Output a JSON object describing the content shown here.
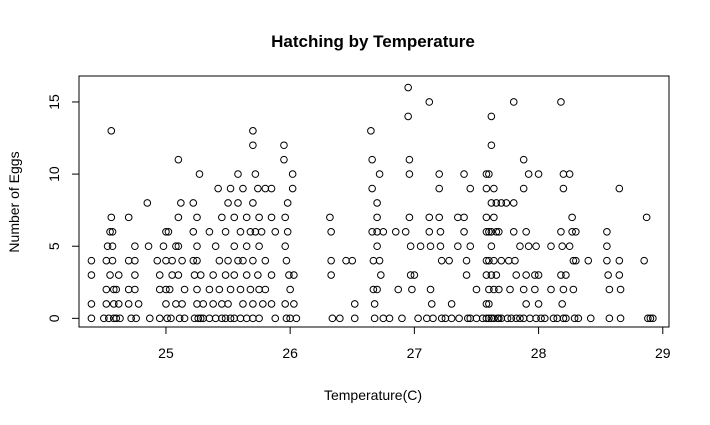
{
  "chart_data": {
    "type": "scatter",
    "title": "Hatching by Temperature",
    "xlabel": "Temperature(C)",
    "ylabel": "Number of Eggs",
    "xlim": [
      24.3,
      29.05
    ],
    "ylim": [
      -0.6,
      16.8
    ],
    "xticks": [
      25,
      26,
      27,
      28,
      29
    ],
    "yticks": [
      0,
      5,
      10,
      15
    ],
    "grid": false,
    "marker": "open-circle",
    "colors": {
      "points": "#000000",
      "frame": "#000000",
      "background": "#ffffff"
    },
    "points": [
      [
        24.4,
        4
      ],
      [
        24.4,
        3
      ],
      [
        24.4,
        1
      ],
      [
        24.4,
        0
      ],
      [
        24.5,
        0
      ],
      [
        24.52,
        1
      ],
      [
        24.52,
        2
      ],
      [
        24.52,
        4
      ],
      [
        24.53,
        5
      ],
      [
        24.54,
        0
      ],
      [
        24.55,
        3
      ],
      [
        24.55,
        6
      ],
      [
        24.56,
        13
      ],
      [
        24.56,
        7
      ],
      [
        24.57,
        6
      ],
      [
        24.57,
        5
      ],
      [
        24.57,
        4
      ],
      [
        24.58,
        2
      ],
      [
        24.58,
        1
      ],
      [
        24.58,
        0
      ],
      [
        24.6,
        2
      ],
      [
        24.6,
        0
      ],
      [
        24.62,
        3
      ],
      [
        24.62,
        1
      ],
      [
        24.63,
        0
      ],
      [
        24.7,
        7
      ],
      [
        24.7,
        4
      ],
      [
        24.7,
        2
      ],
      [
        24.7,
        1
      ],
      [
        24.72,
        0
      ],
      [
        24.75,
        5
      ],
      [
        24.75,
        4
      ],
      [
        24.75,
        3
      ],
      [
        24.75,
        2
      ],
      [
        24.76,
        0
      ],
      [
        24.78,
        1
      ],
      [
        24.85,
        8
      ],
      [
        24.86,
        5
      ],
      [
        24.87,
        0
      ],
      [
        24.93,
        4
      ],
      [
        24.95,
        3
      ],
      [
        24.95,
        2
      ],
      [
        24.95,
        0
      ],
      [
        24.98,
        5
      ],
      [
        25.0,
        6
      ],
      [
        25.0,
        4
      ],
      [
        25.0,
        2
      ],
      [
        25.0,
        1
      ],
      [
        25.01,
        0
      ],
      [
        25.02,
        6
      ],
      [
        25.03,
        2
      ],
      [
        25.04,
        0
      ],
      [
        25.05,
        4
      ],
      [
        25.05,
        3
      ],
      [
        25.08,
        5
      ],
      [
        25.08,
        1
      ],
      [
        25.1,
        11
      ],
      [
        25.1,
        7
      ],
      [
        25.1,
        5
      ],
      [
        25.1,
        3
      ],
      [
        25.11,
        0
      ],
      [
        25.12,
        8
      ],
      [
        25.13,
        4
      ],
      [
        25.13,
        1
      ],
      [
        25.15,
        0
      ],
      [
        25.15,
        2
      ],
      [
        25.22,
        8
      ],
      [
        25.22,
        6
      ],
      [
        25.22,
        4
      ],
      [
        25.23,
        3
      ],
      [
        25.23,
        0
      ],
      [
        25.25,
        7
      ],
      [
        25.25,
        5
      ],
      [
        25.25,
        4
      ],
      [
        25.25,
        2
      ],
      [
        25.25,
        1
      ],
      [
        25.26,
        0
      ],
      [
        25.27,
        10
      ],
      [
        25.28,
        3
      ],
      [
        25.28,
        0
      ],
      [
        25.3,
        1
      ],
      [
        25.3,
        0
      ],
      [
        25.35,
        6
      ],
      [
        25.35,
        2
      ],
      [
        25.35,
        0
      ],
      [
        25.38,
        3
      ],
      [
        25.38,
        1
      ],
      [
        25.4,
        5
      ],
      [
        25.4,
        0
      ],
      [
        25.42,
        9
      ],
      [
        25.43,
        4
      ],
      [
        25.43,
        2
      ],
      [
        25.45,
        7
      ],
      [
        25.45,
        1
      ],
      [
        25.45,
        0
      ],
      [
        25.48,
        6
      ],
      [
        25.48,
        3
      ],
      [
        25.48,
        0
      ],
      [
        25.5,
        8
      ],
      [
        25.5,
        4
      ],
      [
        25.5,
        1
      ],
      [
        25.52,
        9
      ],
      [
        25.52,
        2
      ],
      [
        25.52,
        0
      ],
      [
        25.55,
        7
      ],
      [
        25.55,
        5
      ],
      [
        25.55,
        3
      ],
      [
        25.55,
        0
      ],
      [
        25.58,
        10
      ],
      [
        25.58,
        8
      ],
      [
        25.58,
        4
      ],
      [
        25.6,
        6
      ],
      [
        25.6,
        2
      ],
      [
        25.6,
        0
      ],
      [
        25.62,
        9
      ],
      [
        25.62,
        4
      ],
      [
        25.62,
        1
      ],
      [
        25.65,
        7
      ],
      [
        25.65,
        5
      ],
      [
        25.65,
        3
      ],
      [
        25.65,
        0
      ],
      [
        25.68,
        6
      ],
      [
        25.68,
        2
      ],
      [
        25.7,
        13
      ],
      [
        25.7,
        12
      ],
      [
        25.7,
        8
      ],
      [
        25.7,
        4
      ],
      [
        25.7,
        1
      ],
      [
        25.7,
        0
      ],
      [
        25.72,
        10
      ],
      [
        25.72,
        6
      ],
      [
        25.74,
        9
      ],
      [
        25.74,
        3
      ],
      [
        25.75,
        7
      ],
      [
        25.75,
        5
      ],
      [
        25.75,
        2
      ],
      [
        25.75,
        0
      ],
      [
        25.77,
        6
      ],
      [
        25.78,
        1
      ],
      [
        25.8,
        9
      ],
      [
        25.8,
        4
      ],
      [
        25.8,
        2
      ],
      [
        25.85,
        9
      ],
      [
        25.85,
        7
      ],
      [
        25.85,
        3
      ],
      [
        25.85,
        1
      ],
      [
        25.88,
        6
      ],
      [
        25.88,
        0
      ],
      [
        25.95,
        12
      ],
      [
        25.95,
        11
      ],
      [
        25.96,
        7
      ],
      [
        25.96,
        5
      ],
      [
        25.96,
        1
      ],
      [
        25.97,
        4
      ],
      [
        25.97,
        0
      ],
      [
        25.98,
        8
      ],
      [
        25.98,
        6
      ],
      [
        25.99,
        3
      ],
      [
        26.0,
        2
      ],
      [
        26.0,
        0
      ],
      [
        26.02,
        10
      ],
      [
        26.02,
        9
      ],
      [
        26.03,
        3
      ],
      [
        26.03,
        1
      ],
      [
        26.05,
        0
      ],
      [
        26.32,
        7
      ],
      [
        26.33,
        6
      ],
      [
        26.33,
        4
      ],
      [
        26.33,
        3
      ],
      [
        26.34,
        0
      ],
      [
        26.4,
        0
      ],
      [
        26.45,
        4
      ],
      [
        26.5,
        4
      ],
      [
        26.52,
        1
      ],
      [
        26.52,
        0
      ],
      [
        26.65,
        13
      ],
      [
        26.66,
        11
      ],
      [
        26.66,
        9
      ],
      [
        26.66,
        6
      ],
      [
        26.67,
        4
      ],
      [
        26.67,
        2
      ],
      [
        26.68,
        1
      ],
      [
        26.68,
        0
      ],
      [
        26.7,
        8
      ],
      [
        26.7,
        7
      ],
      [
        26.7,
        6
      ],
      [
        26.7,
        5
      ],
      [
        26.7,
        2
      ],
      [
        26.72,
        10
      ],
      [
        26.72,
        4
      ],
      [
        26.73,
        3
      ],
      [
        26.75,
        6
      ],
      [
        26.75,
        0
      ],
      [
        26.8,
        0
      ],
      [
        26.85,
        6
      ],
      [
        26.87,
        2
      ],
      [
        26.9,
        0
      ],
      [
        26.93,
        6
      ],
      [
        26.95,
        16
      ],
      [
        26.95,
        14
      ],
      [
        26.96,
        11
      ],
      [
        26.96,
        10
      ],
      [
        26.96,
        7
      ],
      [
        26.97,
        5
      ],
      [
        26.97,
        3
      ],
      [
        26.98,
        2
      ],
      [
        27.0,
        3
      ],
      [
        27.03,
        0
      ],
      [
        27.05,
        5
      ],
      [
        27.1,
        0
      ],
      [
        27.12,
        15
      ],
      [
        27.12,
        7
      ],
      [
        27.12,
        6
      ],
      [
        27.13,
        5
      ],
      [
        27.13,
        2
      ],
      [
        27.14,
        1
      ],
      [
        27.15,
        0
      ],
      [
        27.2,
        10
      ],
      [
        27.2,
        9
      ],
      [
        27.2,
        7
      ],
      [
        27.21,
        6
      ],
      [
        27.21,
        5
      ],
      [
        27.22,
        4
      ],
      [
        27.22,
        0
      ],
      [
        27.25,
        0
      ],
      [
        27.28,
        4
      ],
      [
        27.3,
        1
      ],
      [
        27.3,
        0
      ],
      [
        27.35,
        7
      ],
      [
        27.35,
        5
      ],
      [
        27.36,
        0
      ],
      [
        27.4,
        10
      ],
      [
        27.4,
        7
      ],
      [
        27.4,
        6
      ],
      [
        27.42,
        4
      ],
      [
        27.42,
        3
      ],
      [
        27.43,
        0
      ],
      [
        27.45,
        9
      ],
      [
        27.45,
        5
      ],
      [
        27.45,
        0
      ],
      [
        27.5,
        2
      ],
      [
        27.5,
        0
      ],
      [
        27.55,
        0
      ],
      [
        27.58,
        10
      ],
      [
        27.58,
        9
      ],
      [
        27.58,
        7
      ],
      [
        27.58,
        6
      ],
      [
        27.58,
        4
      ],
      [
        27.58,
        3
      ],
      [
        27.58,
        1
      ],
      [
        27.58,
        0
      ],
      [
        27.6,
        10
      ],
      [
        27.6,
        6
      ],
      [
        27.6,
        4
      ],
      [
        27.6,
        2
      ],
      [
        27.6,
        1
      ],
      [
        27.6,
        0
      ],
      [
        27.62,
        14
      ],
      [
        27.62,
        12
      ],
      [
        27.62,
        8
      ],
      [
        27.62,
        6
      ],
      [
        27.62,
        5
      ],
      [
        27.62,
        3
      ],
      [
        27.62,
        0
      ],
      [
        27.64,
        9
      ],
      [
        27.64,
        7
      ],
      [
        27.64,
        4
      ],
      [
        27.64,
        2
      ],
      [
        27.64,
        0
      ],
      [
        27.66,
        8
      ],
      [
        27.66,
        6
      ],
      [
        27.66,
        3
      ],
      [
        27.67,
        0
      ],
      [
        27.68,
        6
      ],
      [
        27.68,
        2
      ],
      [
        27.68,
        0
      ],
      [
        27.7,
        8
      ],
      [
        27.7,
        4
      ],
      [
        27.7,
        0
      ],
      [
        27.74,
        8
      ],
      [
        27.75,
        0
      ],
      [
        27.76,
        4
      ],
      [
        27.77,
        2
      ],
      [
        27.78,
        0
      ],
      [
        27.8,
        15
      ],
      [
        27.8,
        8
      ],
      [
        27.8,
        6
      ],
      [
        27.81,
        4
      ],
      [
        27.82,
        3
      ],
      [
        27.82,
        0
      ],
      [
        27.85,
        5
      ],
      [
        27.85,
        0
      ],
      [
        27.88,
        11
      ],
      [
        27.88,
        9
      ],
      [
        27.88,
        2
      ],
      [
        27.88,
        0
      ],
      [
        27.9,
        6
      ],
      [
        27.9,
        3
      ],
      [
        27.9,
        1
      ],
      [
        27.92,
        10
      ],
      [
        27.92,
        5
      ],
      [
        27.93,
        0
      ],
      [
        27.97,
        3
      ],
      [
        27.97,
        2
      ],
      [
        27.98,
        5
      ],
      [
        27.98,
        0
      ],
      [
        28.0,
        10
      ],
      [
        28.0,
        3
      ],
      [
        28.0,
        1
      ],
      [
        28.02,
        0
      ],
      [
        28.05,
        0
      ],
      [
        28.1,
        5
      ],
      [
        28.1,
        2
      ],
      [
        28.12,
        0
      ],
      [
        28.15,
        0
      ],
      [
        28.18,
        15
      ],
      [
        28.18,
        6
      ],
      [
        28.18,
        3
      ],
      [
        28.19,
        5
      ],
      [
        28.19,
        1
      ],
      [
        28.2,
        10
      ],
      [
        28.2,
        9
      ],
      [
        28.2,
        2
      ],
      [
        28.2,
        0
      ],
      [
        28.22,
        3
      ],
      [
        28.22,
        0
      ],
      [
        28.25,
        10
      ],
      [
        28.25,
        5
      ],
      [
        28.27,
        7
      ],
      [
        28.27,
        6
      ],
      [
        28.28,
        4
      ],
      [
        28.28,
        2
      ],
      [
        28.29,
        0
      ],
      [
        28.3,
        6
      ],
      [
        28.3,
        4
      ],
      [
        28.32,
        0
      ],
      [
        28.4,
        4
      ],
      [
        28.42,
        0
      ],
      [
        28.55,
        6
      ],
      [
        28.55,
        5
      ],
      [
        28.55,
        4
      ],
      [
        28.56,
        3
      ],
      [
        28.57,
        2
      ],
      [
        28.57,
        0
      ],
      [
        28.65,
        9
      ],
      [
        28.65,
        4
      ],
      [
        28.65,
        3
      ],
      [
        28.66,
        2
      ],
      [
        28.66,
        0
      ],
      [
        28.85,
        4
      ],
      [
        28.87,
        7
      ],
      [
        28.88,
        0
      ],
      [
        28.9,
        0
      ],
      [
        28.92,
        0
      ]
    ]
  }
}
